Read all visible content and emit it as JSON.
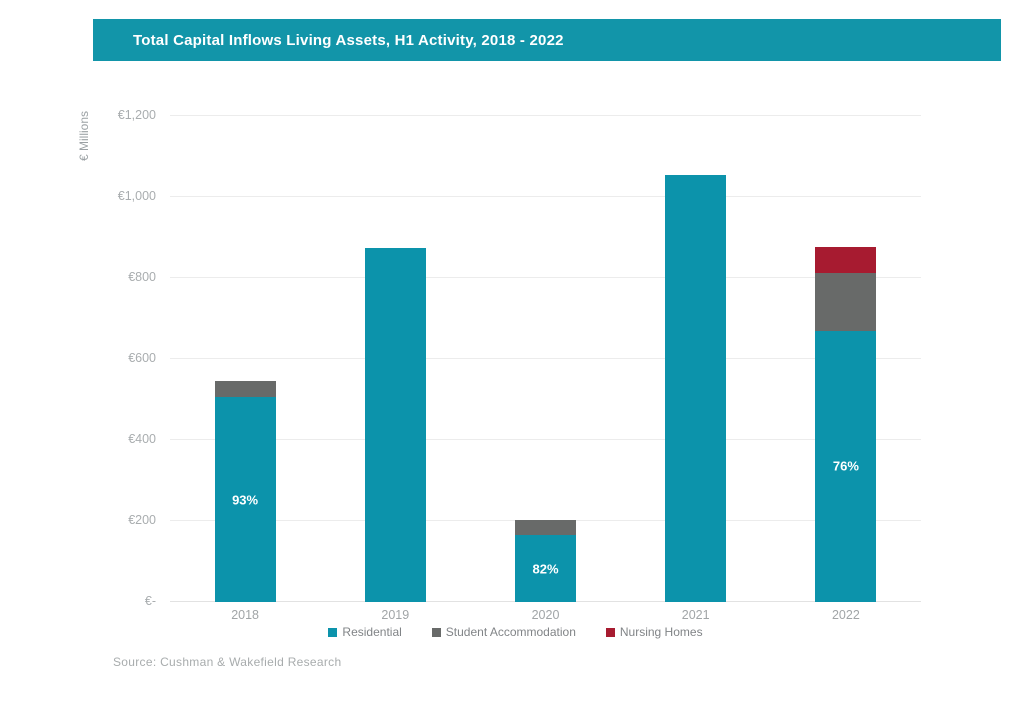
{
  "header": {
    "title": "Total Capital Inflows Living Assets, H1 Activity, 2018 - 2022",
    "background": "#1295a9",
    "text_color": "#ffffff"
  },
  "source": {
    "text": "Source: Cushman & Wakefield Research"
  },
  "chart_data": {
    "type": "bar",
    "stacked": true,
    "title": "Total Capital Inflows Living Assets, H1 Activity, 2018 - 2022",
    "xlabel": "",
    "ylabel": "€ Millions",
    "ylim": [
      0,
      1200
    ],
    "grid": true,
    "legend_position": "bottom",
    "yticks": [
      {
        "value": 0,
        "label": "€-"
      },
      {
        "value": 200,
        "label": "€200"
      },
      {
        "value": 400,
        "label": "€400"
      },
      {
        "value": 600,
        "label": "€600"
      },
      {
        "value": 800,
        "label": "€800"
      },
      {
        "value": 1000,
        "label": "€1,000"
      },
      {
        "value": 1200,
        "label": "€1,200"
      }
    ],
    "categories": [
      "2018",
      "2019",
      "2020",
      "2021",
      "2022"
    ],
    "series": [
      {
        "name": "Residential",
        "color": "#0c93ab",
        "values": [
          505,
          875,
          165,
          1055,
          670
        ]
      },
      {
        "name": "Student Accommodation",
        "color": "#686a69",
        "values": [
          40,
          0,
          37,
          0,
          143
        ]
      },
      {
        "name": "Nursing Homes",
        "color": "#a71b30",
        "values": [
          0,
          0,
          0,
          0,
          64
        ]
      }
    ],
    "bar_labels": [
      "93%",
      "",
      "82%",
      "",
      "76%"
    ],
    "bar_label_color": "#ffffff"
  }
}
